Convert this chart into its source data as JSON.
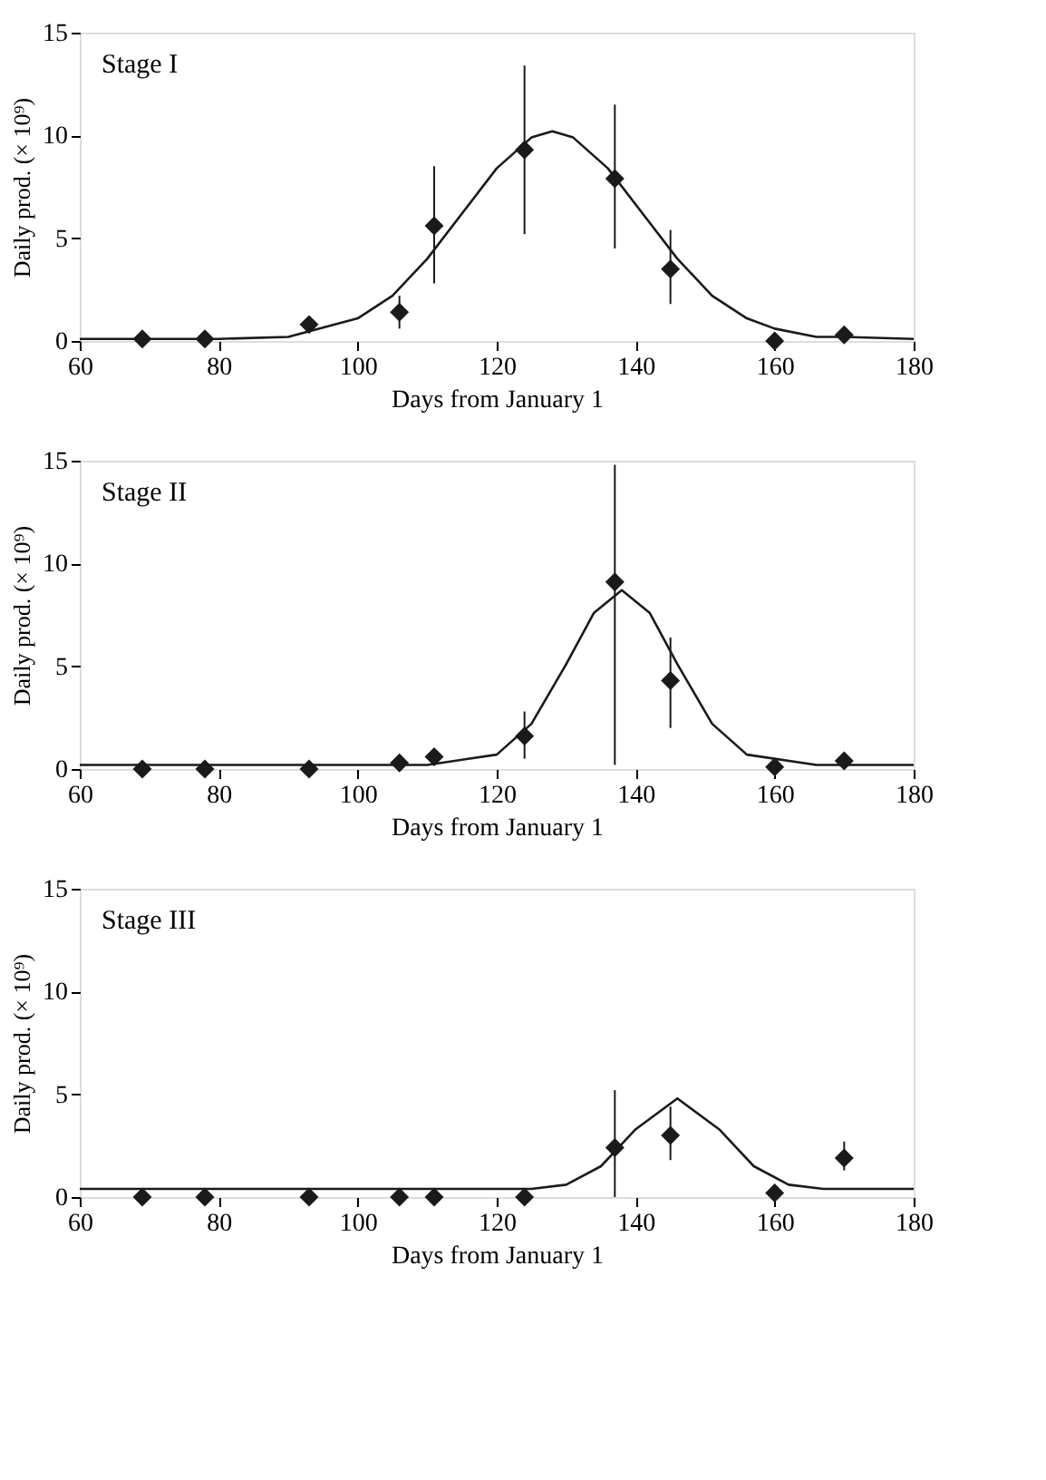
{
  "chart_data": [
    {
      "type": "scatter",
      "title": "Stage I",
      "xlabel": "Days from January 1",
      "ylabel": "Daily prod. (× 10⁹)",
      "xlim": [
        60,
        180
      ],
      "xticks": [
        60,
        80,
        100,
        120,
        140,
        160,
        180
      ],
      "ylim": [
        0,
        15
      ],
      "yticks": [
        0,
        5,
        10,
        15
      ],
      "grid": false,
      "marker": "diamond",
      "series": [
        {
          "color": "#1a1a1a",
          "x": [
            69,
            78,
            93,
            106,
            111,
            124,
            137,
            145,
            160,
            170
          ],
          "values": [
            0.1,
            0.1,
            0.8,
            1.4,
            5.6,
            9.3,
            7.9,
            3.5,
            0,
            0.3
          ],
          "errors": [
            null,
            null,
            null,
            [
              0.6,
              2.2
            ],
            [
              2.8,
              8.5
            ],
            [
              5.2,
              13.4
            ],
            [
              4.5,
              11.5
            ],
            [
              1.8,
              5.4
            ],
            null,
            null
          ]
        },
        {
          "type": "line",
          "marker": "none",
          "line_style": "solid",
          "color": "#1a1a1a",
          "x": [
            60,
            80,
            90,
            100,
            105,
            110,
            115,
            120,
            125,
            128,
            131,
            136,
            141,
            146,
            151,
            156,
            160,
            166,
            170,
            180
          ],
          "values": [
            0.1,
            0.1,
            0.2,
            1.1,
            2.2,
            4.0,
            6.2,
            8.4,
            9.9,
            10.2,
            9.9,
            8.4,
            6.2,
            4.0,
            2.2,
            1.1,
            0.6,
            0.2,
            0.2,
            0.1
          ]
        }
      ]
    },
    {
      "type": "scatter",
      "title": "Stage II",
      "xlabel": "Days from January 1",
      "ylabel": "Daily prod. (× 10⁹)",
      "xlim": [
        60,
        180
      ],
      "xticks": [
        60,
        80,
        100,
        120,
        140,
        160,
        180
      ],
      "ylim": [
        0,
        15
      ],
      "yticks": [
        0,
        5,
        10,
        15
      ],
      "grid": false,
      "marker": "diamond",
      "series": [
        {
          "color": "#1a1a1a",
          "x": [
            69,
            78,
            93,
            106,
            111,
            124,
            137,
            145,
            160,
            170
          ],
          "values": [
            0,
            0,
            0,
            0.3,
            0.6,
            1.6,
            9.1,
            4.3,
            0.1,
            0.4
          ],
          "errors": [
            null,
            null,
            null,
            null,
            null,
            [
              0.5,
              2.8
            ],
            [
              0.2,
              14.8
            ],
            [
              2.0,
              6.4
            ],
            null,
            null
          ]
        },
        {
          "type": "line",
          "marker": "none",
          "line_style": "solid",
          "color": "#1a1a1a",
          "x": [
            60,
            110,
            120,
            125,
            130,
            134,
            138,
            142,
            146,
            151,
            156,
            166,
            180
          ],
          "values": [
            0.2,
            0.2,
            0.7,
            2.2,
            5.1,
            7.6,
            8.7,
            7.6,
            5.1,
            2.2,
            0.7,
            0.2,
            0.2
          ]
        }
      ]
    },
    {
      "type": "scatter",
      "title": "Stage III",
      "xlabel": "Days from January 1",
      "ylabel": "Daily prod. (× 10⁹)",
      "xlim": [
        60,
        180
      ],
      "xticks": [
        60,
        80,
        100,
        120,
        140,
        160,
        180
      ],
      "ylim": [
        0,
        15
      ],
      "yticks": [
        0,
        5,
        10,
        15
      ],
      "grid": false,
      "marker": "diamond",
      "series": [
        {
          "color": "#1a1a1a",
          "x": [
            69,
            78,
            93,
            106,
            111,
            124,
            137,
            145,
            160,
            170
          ],
          "values": [
            0,
            0,
            0,
            0,
            0,
            0,
            2.4,
            3.0,
            0.2,
            1.9
          ],
          "errors": [
            null,
            null,
            null,
            null,
            null,
            null,
            [
              0,
              5.2
            ],
            [
              1.8,
              4.4
            ],
            null,
            [
              1.3,
              2.7
            ]
          ]
        },
        {
          "type": "line",
          "marker": "none",
          "line_style": "solid",
          "color": "#1a1a1a",
          "x": [
            60,
            125,
            130,
            135,
            140,
            146,
            152,
            157,
            162,
            167,
            180
          ],
          "values": [
            0.4,
            0.4,
            0.6,
            1.5,
            3.3,
            4.8,
            3.3,
            1.5,
            0.6,
            0.4,
            0.4
          ]
        }
      ]
    }
  ]
}
